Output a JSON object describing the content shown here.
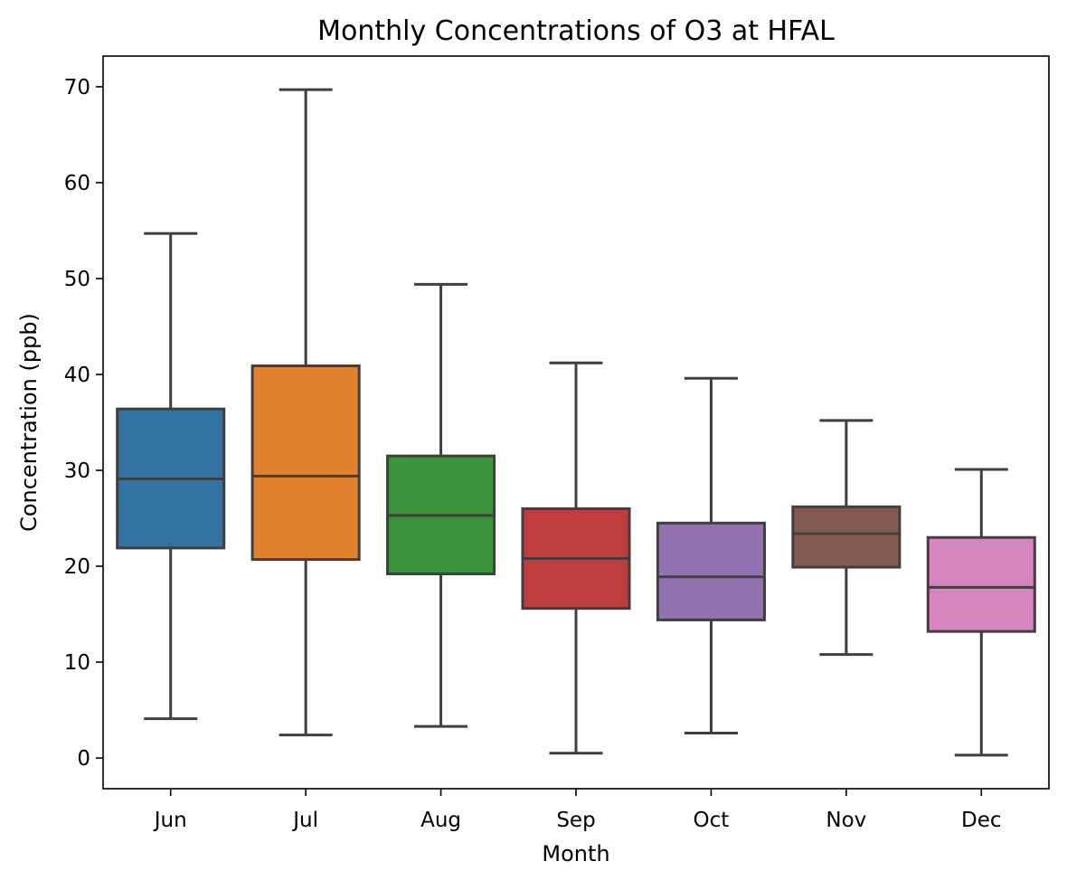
{
  "chart_data": {
    "type": "box",
    "title": "Monthly Concentrations of O3 at HFAL",
    "xlabel": "Month",
    "ylabel": "Concentration (ppb)",
    "ylim": [
      -3.2,
      73.2
    ],
    "yticks": [
      0,
      10,
      20,
      30,
      40,
      50,
      60,
      70
    ],
    "grid": false,
    "legend": "none",
    "categories": [
      "Jun",
      "Jul",
      "Aug",
      "Sep",
      "Oct",
      "Nov",
      "Dec"
    ],
    "boxes": [
      {
        "category": "Jun",
        "whisker_low": 4.1,
        "q1": 21.9,
        "median": 29.1,
        "q3": 36.4,
        "whisker_high": 54.7,
        "color": "#3274a1"
      },
      {
        "category": "Jul",
        "whisker_low": 2.4,
        "q1": 20.7,
        "median": 29.4,
        "q3": 40.9,
        "whisker_high": 69.7,
        "color": "#e1812c"
      },
      {
        "category": "Aug",
        "whisker_low": 3.3,
        "q1": 19.2,
        "median": 25.3,
        "q3": 31.5,
        "whisker_high": 49.4,
        "color": "#3a923a"
      },
      {
        "category": "Sep",
        "whisker_low": 0.5,
        "q1": 15.6,
        "median": 20.8,
        "q3": 26.0,
        "whisker_high": 41.2,
        "color": "#c03d3e"
      },
      {
        "category": "Oct",
        "whisker_low": 2.6,
        "q1": 14.4,
        "median": 18.9,
        "q3": 24.5,
        "whisker_high": 39.6,
        "color": "#9372b2"
      },
      {
        "category": "Nov",
        "whisker_low": 10.8,
        "q1": 19.9,
        "median": 23.4,
        "q3": 26.2,
        "whisker_high": 35.2,
        "color": "#845b53"
      },
      {
        "category": "Dec",
        "whisker_low": 0.3,
        "q1": 13.2,
        "median": 17.8,
        "q3": 23.0,
        "whisker_high": 30.1,
        "color": "#d684bd"
      }
    ]
  }
}
